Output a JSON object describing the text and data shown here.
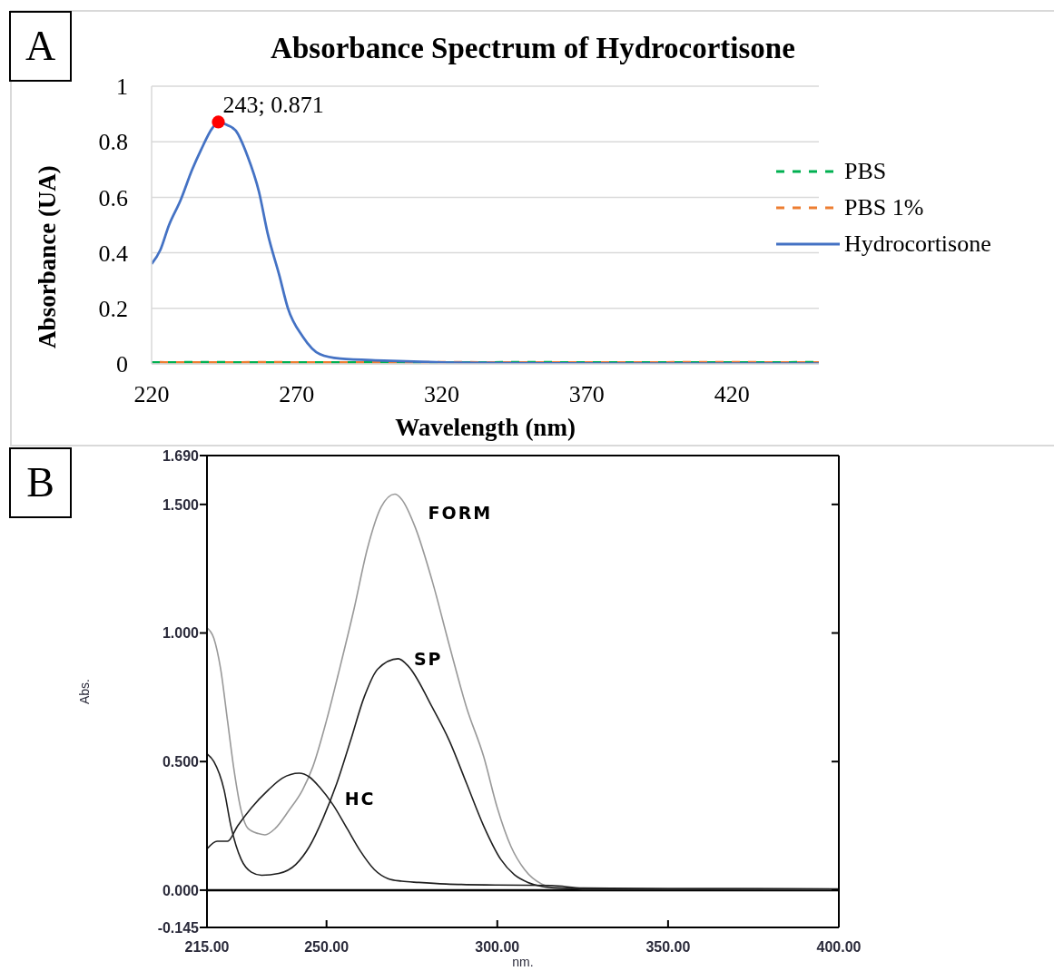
{
  "chart_data": [
    {
      "type": "line",
      "title": "Absorbance Spectrum of Hydrocortisone",
      "xlabel": "Wavelength (nm)",
      "ylabel": "Absorbance (UA)",
      "annotations": [
        "A"
      ],
      "xlim": [
        220,
        450
      ],
      "xticks": [
        220,
        270,
        320,
        370,
        420
      ],
      "ylim": [
        0,
        1
      ],
      "yticks": [
        0,
        0.2,
        0.4,
        0.6,
        0.8,
        1
      ],
      "grid": "y",
      "legend": "right",
      "series": [
        {
          "name": "PBS",
          "color": "#00b050",
          "line_style": "dashed",
          "x": [
            220,
            240,
            260,
            280,
            300,
            320,
            350,
            380,
            410,
            450
          ],
          "values": [
            0.005,
            0.006,
            0.005,
            0.005,
            0.006,
            0.005,
            0.006,
            0.005,
            0.005,
            0.006
          ]
        },
        {
          "name": "PBS 1%",
          "color": "#ed7d31",
          "line_style": "dashed",
          "x": [
            220,
            240,
            260,
            280,
            300,
            320,
            350,
            380,
            410,
            450
          ],
          "values": [
            0.006,
            0.005,
            0.006,
            0.005,
            0.005,
            0.006,
            0.005,
            0.005,
            0.006,
            0.005
          ]
        },
        {
          "name": "Hydrocortisone",
          "color": "#4472c4",
          "line_style": "solid",
          "x": [
            220,
            223,
            226,
            230,
            234,
            237,
            241,
            243,
            246,
            249,
            253,
            257,
            260,
            264,
            267,
            272,
            278,
            285,
            300,
            318,
            340,
            380,
            420,
            450
          ],
          "values": [
            0.36,
            0.41,
            0.5,
            0.59,
            0.7,
            0.77,
            0.85,
            0.871,
            0.86,
            0.84,
            0.75,
            0.62,
            0.47,
            0.32,
            0.2,
            0.1,
            0.035,
            0.019,
            0.012,
            0.006,
            0.003,
            0.001,
            0.001,
            0.001
          ]
        },
        {
          "type": "scatter",
          "color": "#ff0000",
          "marker": "circle",
          "x": [
            243
          ],
          "values": [
            0.871
          ],
          "value_labels": [
            "243; 0.871"
          ]
        }
      ]
    },
    {
      "type": "line",
      "xlabel": "nm.",
      "ylabel": "Abs.",
      "annotations": [
        "B"
      ],
      "xlim": [
        215,
        400
      ],
      "xticks": [
        {
          "value": 215,
          "label": "215.00"
        },
        {
          "value": 250,
          "label": "250.00"
        },
        {
          "value": 300,
          "label": "300.00"
        },
        {
          "value": 350,
          "label": "350.00"
        },
        {
          "value": 400,
          "label": "400.00"
        }
      ],
      "ylim": [
        -0.145,
        1.69
      ],
      "yticks": [
        -0.145,
        {
          "value": 0,
          "label": "0.000"
        },
        {
          "value": 0.5,
          "label": "0.500"
        },
        {
          "value": 1,
          "label": "1.000"
        },
        {
          "value": 1.5,
          "label": "1.500"
        },
        {
          "value": 1.69,
          "label": "1.690"
        }
      ],
      "ref_lines": [
        {
          "axis": "y",
          "value": 0,
          "color": "#000000"
        }
      ],
      "series": [
        {
          "name": "FORM",
          "color": "#999999",
          "x": [
            215,
            217,
            219,
            221,
            223,
            225,
            227,
            230,
            232,
            235,
            239,
            243,
            246,
            250,
            254,
            258,
            262,
            266,
            270,
            272,
            276,
            281,
            286,
            291,
            296,
            300,
            304,
            308,
            313,
            316,
            320,
            330,
            350,
            380,
            400
          ],
          "values": [
            1.02,
            0.98,
            0.86,
            0.66,
            0.46,
            0.31,
            0.24,
            0.22,
            0.215,
            0.24,
            0.31,
            0.39,
            0.48,
            0.66,
            0.87,
            1.09,
            1.33,
            1.49,
            1.54,
            1.52,
            1.41,
            1.2,
            0.95,
            0.71,
            0.52,
            0.32,
            0.17,
            0.08,
            0.024,
            0.012,
            0.008,
            0.005,
            0.005,
            0.004,
            0.003
          ]
        },
        {
          "name": "SP",
          "color": "#1f1f1f",
          "x": [
            215,
            217,
            220,
            222,
            225,
            228,
            231,
            236,
            241,
            245,
            249,
            253,
            257,
            261,
            265,
            271,
            274,
            281,
            286,
            291,
            296,
            301,
            305,
            309,
            313,
            318,
            330,
            350,
            400
          ],
          "values": [
            0.53,
            0.5,
            0.39,
            0.25,
            0.12,
            0.07,
            0.058,
            0.065,
            0.1,
            0.17,
            0.28,
            0.415,
            0.58,
            0.75,
            0.86,
            0.9,
            0.87,
            0.71,
            0.58,
            0.415,
            0.25,
            0.12,
            0.06,
            0.03,
            0.015,
            0.008,
            0.005,
            0.005,
            0.004
          ]
        },
        {
          "name": "HC",
          "color": "#1f1f1f",
          "x": [
            215,
            218,
            221,
            224,
            228,
            233,
            237,
            242,
            245,
            248,
            252,
            256,
            260,
            264,
            268,
            272,
            277,
            285,
            300,
            316,
            325,
            350,
            400
          ],
          "values": [
            0.16,
            0.19,
            0.19,
            0.25,
            0.32,
            0.39,
            0.435,
            0.455,
            0.44,
            0.4,
            0.33,
            0.24,
            0.15,
            0.08,
            0.045,
            0.035,
            0.03,
            0.024,
            0.02,
            0.018,
            0.008,
            0.006,
            0.005
          ]
        }
      ]
    }
  ]
}
